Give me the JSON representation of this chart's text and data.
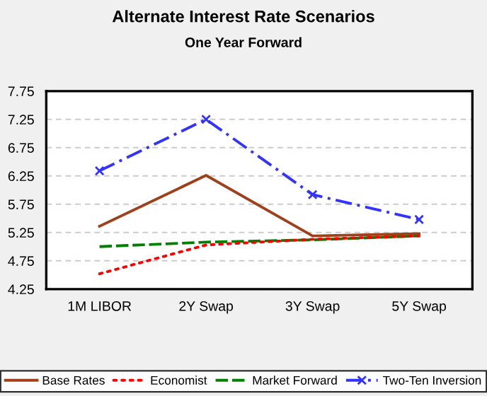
{
  "chart_data": {
    "type": "line",
    "title": "Alternate Interest Rate Scenarios",
    "subtitle": "One Year Forward",
    "categories": [
      "1M LIBOR",
      "2Y Swap",
      "3Y Swap",
      "5Y Swap"
    ],
    "series": [
      {
        "name": "Base Rates",
        "color": "#a0401a",
        "values": [
          5.36,
          6.26,
          5.19,
          5.23
        ],
        "line_style": "solid",
        "marker": "none"
      },
      {
        "name": "Economist",
        "color": "#ff0000",
        "values": [
          4.52,
          5.03,
          5.13,
          5.19
        ],
        "line_style": "dotted",
        "marker": "none"
      },
      {
        "name": "Market Forward",
        "color": "#008000",
        "values": [
          5.0,
          5.08,
          5.12,
          5.19
        ],
        "line_style": "dashed",
        "marker": "none"
      },
      {
        "name": "Two-Ten Inversion",
        "color": "#3333ff",
        "values": [
          6.34,
          7.25,
          5.92,
          5.48
        ],
        "line_style": "dashdot",
        "marker": "cross"
      }
    ],
    "ylim": [
      4.25,
      7.75
    ],
    "yticks": [
      4.25,
      4.75,
      5.25,
      5.75,
      6.25,
      6.75,
      7.25,
      7.75
    ],
    "grid": "y",
    "legend": "bottom"
  }
}
